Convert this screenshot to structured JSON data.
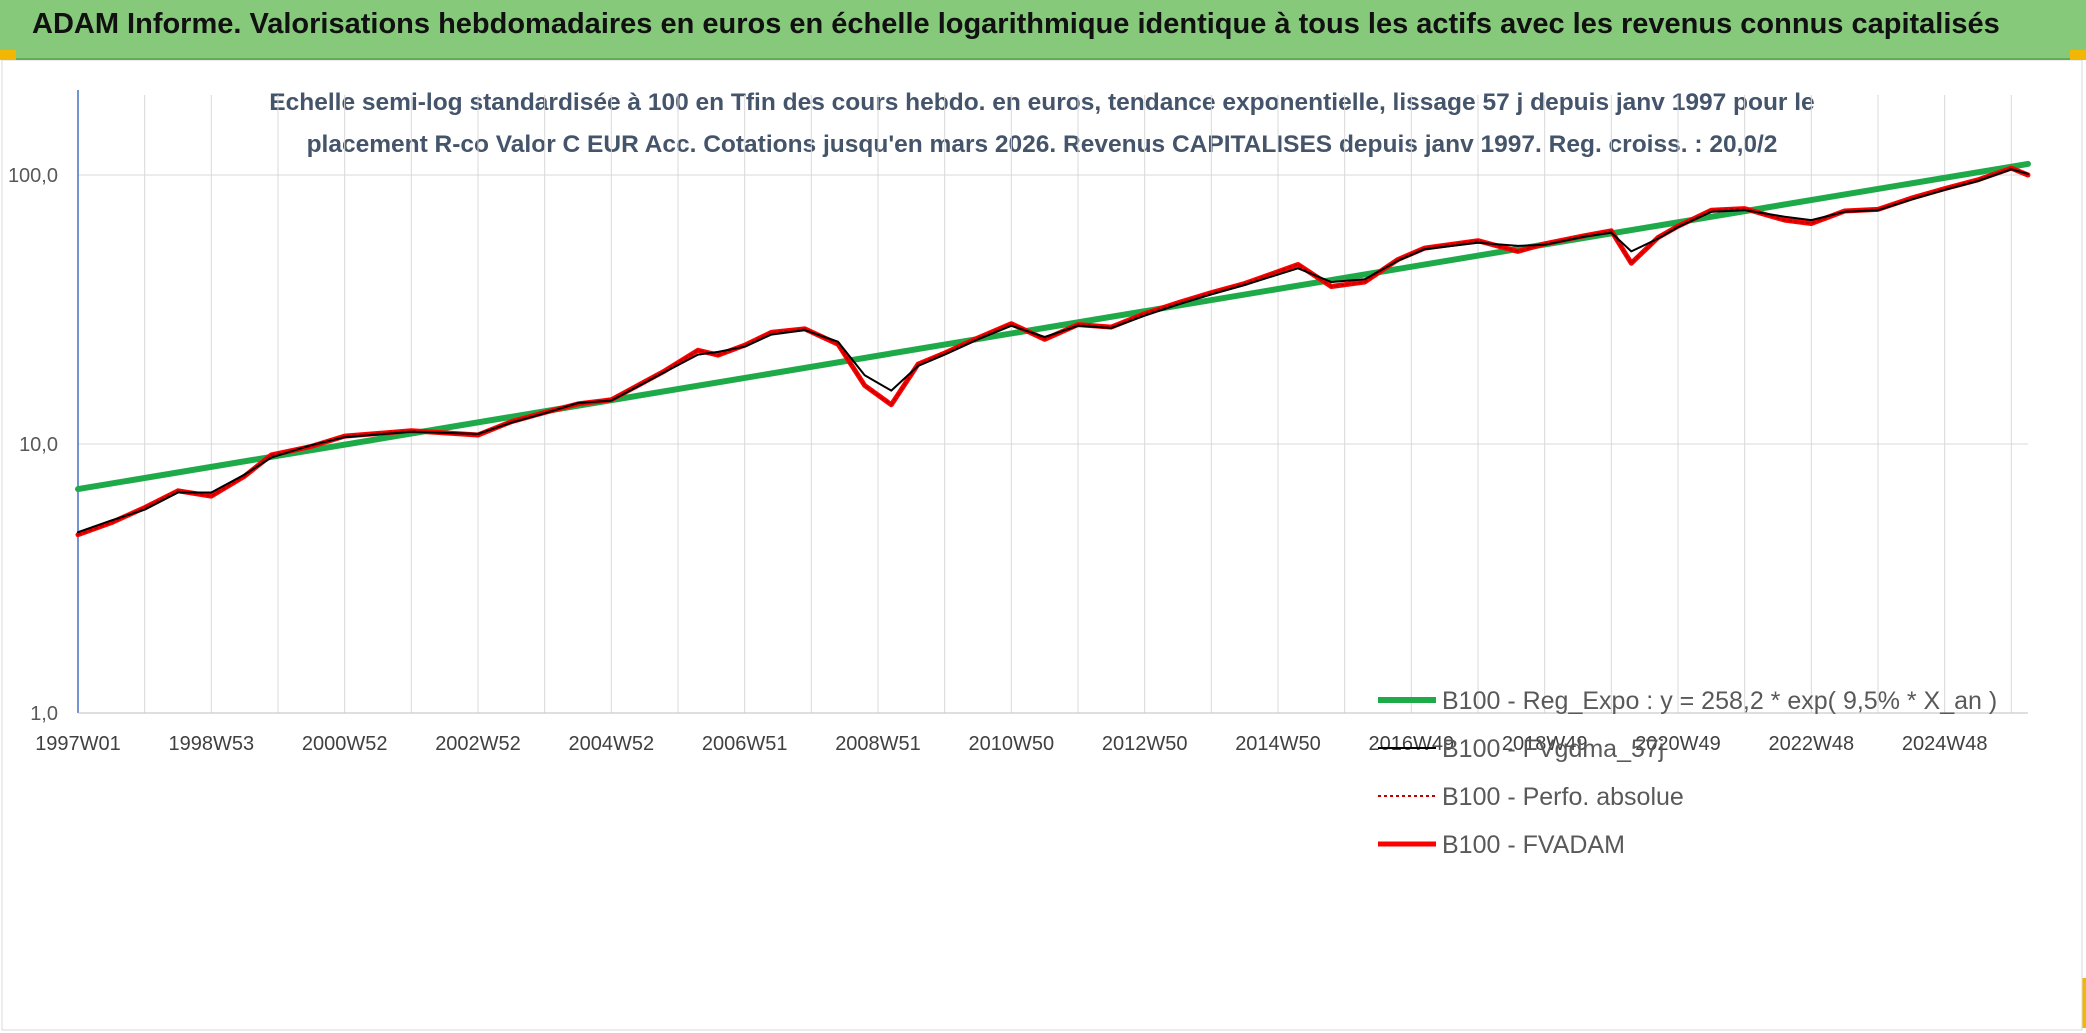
{
  "header": {
    "title": "ADAM Informe. Valorisations hebdomadaires en euros en échelle logarithmique identique à tous les actifs avec les revenus connus capitalisés"
  },
  "colors": {
    "header_bg": "#86c97a",
    "reg_expo": "#1faa4a",
    "fvgdma": "#000000",
    "perfo": "#c00000",
    "fvadam": "#ff0000",
    "gridline": "#d9d9d9",
    "yaxis": "#4472c4"
  },
  "chart_data": {
    "type": "line",
    "title_lines": [
      "Echelle semi-log standardisée à 100 en Tfin des cours hebdo. en euros, tendance exponentielle, lissage 57 j depuis janv 1997 pour le",
      "placement R-co Valor C EUR Acc. Cotations jusqu'en mars 2026. Revenus CAPITALISES depuis janv 1997. Reg. croiss. : 20,0/2"
    ],
    "y_scale": "log",
    "ylim": [
      1,
      200
    ],
    "xlim": [
      1997.0,
      2026.25
    ],
    "y_ticks": [
      {
        "value": 1,
        "label": "1,0"
      },
      {
        "value": 10,
        "label": "10,0"
      },
      {
        "value": 100,
        "label": "100,0"
      }
    ],
    "x_ticks": [
      {
        "value": 1997.0,
        "label": "1997W01"
      },
      {
        "value": 1999.0,
        "label": "1998W53"
      },
      {
        "value": 2001.0,
        "label": "2000W52"
      },
      {
        "value": 2003.0,
        "label": "2002W52"
      },
      {
        "value": 2005.0,
        "label": "2004W52"
      },
      {
        "value": 2007.0,
        "label": "2006W51"
      },
      {
        "value": 2009.0,
        "label": "2008W51"
      },
      {
        "value": 2011.0,
        "label": "2010W50"
      },
      {
        "value": 2013.0,
        "label": "2012W50"
      },
      {
        "value": 2015.0,
        "label": "2014W50"
      },
      {
        "value": 2017.0,
        "label": "2016W49"
      },
      {
        "value": 2019.0,
        "label": "2018W49"
      },
      {
        "value": 2021.0,
        "label": "2020W49"
      },
      {
        "value": 2023.0,
        "label": "2022W48"
      },
      {
        "value": 2025.0,
        "label": "2024W48"
      }
    ],
    "grid": true,
    "legend_position": "right",
    "series": [
      {
        "name": "B100 - Reg_Expo : y = 258,2 * exp( 9,5% *  X_an )",
        "key": "reg_expo",
        "style": "solid",
        "points": [
          [
            1997.0,
            6.8
          ],
          [
            2026.25,
            110.0
          ]
        ]
      },
      {
        "name": "B100 - FVgdma_57j",
        "key": "fvgdma",
        "style": "solid",
        "points": [
          [
            1997.0,
            4.7
          ],
          [
            1997.5,
            5.2
          ],
          [
            1998.0,
            5.7
          ],
          [
            1998.5,
            6.6
          ],
          [
            1999.0,
            6.6
          ],
          [
            1999.5,
            7.7
          ],
          [
            1999.9,
            8.9
          ],
          [
            2000.5,
            9.9
          ],
          [
            2001.0,
            10.6
          ],
          [
            2002.0,
            11.1
          ],
          [
            2003.0,
            10.9
          ],
          [
            2003.5,
            12.0
          ],
          [
            2004.0,
            13.0
          ],
          [
            2004.5,
            14.2
          ],
          [
            2005.0,
            14.5
          ],
          [
            2005.8,
            18.5
          ],
          [
            2006.3,
            21.5
          ],
          [
            2006.6,
            22.0
          ],
          [
            2007.0,
            23.0
          ],
          [
            2007.4,
            25.5
          ],
          [
            2007.9,
            26.5
          ],
          [
            2008.4,
            24.0
          ],
          [
            2008.8,
            18.0
          ],
          [
            2009.2,
            15.8
          ],
          [
            2009.6,
            19.5
          ],
          [
            2010.0,
            21.5
          ],
          [
            2010.5,
            24.5
          ],
          [
            2011.0,
            27.5
          ],
          [
            2011.5,
            25.0
          ],
          [
            2012.0,
            27.5
          ],
          [
            2012.5,
            27.0
          ],
          [
            2013.0,
            30.0
          ],
          [
            2013.5,
            33.0
          ],
          [
            2014.0,
            36.0
          ],
          [
            2014.5,
            39.0
          ],
          [
            2015.3,
            45.0
          ],
          [
            2015.8,
            40.0
          ],
          [
            2016.3,
            41.0
          ],
          [
            2016.8,
            48.0
          ],
          [
            2017.2,
            53.0
          ],
          [
            2018.0,
            56.0
          ],
          [
            2018.6,
            54.5
          ],
          [
            2019.0,
            55.0
          ],
          [
            2019.6,
            59.0
          ],
          [
            2020.0,
            61.0
          ],
          [
            2020.3,
            52.0
          ],
          [
            2020.7,
            58.0
          ],
          [
            2021.0,
            64.0
          ],
          [
            2021.5,
            73.0
          ],
          [
            2022.0,
            74.0
          ],
          [
            2022.6,
            70.0
          ],
          [
            2023.0,
            68.0
          ],
          [
            2023.5,
            73.0
          ],
          [
            2024.0,
            74.0
          ],
          [
            2024.5,
            81.0
          ],
          [
            2025.0,
            88.0
          ],
          [
            2025.5,
            95.0
          ],
          [
            2026.0,
            105.0
          ],
          [
            2026.25,
            101.0
          ]
        ]
      },
      {
        "name": "B100 - Perfo. absolue",
        "key": "perfo",
        "style": "dotted",
        "points": [
          [
            1997.0,
            4.6
          ],
          [
            1997.5,
            5.1
          ],
          [
            1998.0,
            5.8
          ],
          [
            1998.5,
            6.7
          ],
          [
            1999.0,
            6.4
          ],
          [
            1999.5,
            7.6
          ],
          [
            1999.9,
            9.1
          ],
          [
            2000.5,
            9.8
          ],
          [
            2001.0,
            10.7
          ],
          [
            2002.0,
            11.2
          ],
          [
            2003.0,
            10.8
          ],
          [
            2003.5,
            12.1
          ],
          [
            2004.0,
            13.1
          ],
          [
            2004.5,
            14.1
          ],
          [
            2005.0,
            14.6
          ],
          [
            2005.8,
            18.7
          ],
          [
            2006.3,
            22.3
          ],
          [
            2006.6,
            21.4
          ],
          [
            2007.0,
            23.3
          ],
          [
            2007.4,
            26.0
          ],
          [
            2007.9,
            26.8
          ],
          [
            2008.4,
            23.5
          ],
          [
            2008.8,
            16.5
          ],
          [
            2009.2,
            14.0
          ],
          [
            2009.6,
            19.8
          ],
          [
            2010.0,
            21.8
          ],
          [
            2010.5,
            24.8
          ],
          [
            2011.0,
            28.0
          ],
          [
            2011.5,
            24.5
          ],
          [
            2012.0,
            27.8
          ],
          [
            2012.5,
            27.2
          ],
          [
            2013.0,
            30.5
          ],
          [
            2013.5,
            33.5
          ],
          [
            2014.0,
            36.5
          ],
          [
            2014.5,
            39.5
          ],
          [
            2015.3,
            46.5
          ],
          [
            2015.8,
            38.5
          ],
          [
            2016.3,
            40.0
          ],
          [
            2016.8,
            48.5
          ],
          [
            2017.2,
            53.5
          ],
          [
            2018.0,
            57.0
          ],
          [
            2018.6,
            52.0
          ],
          [
            2019.0,
            55.5
          ],
          [
            2019.6,
            59.5
          ],
          [
            2020.0,
            62.0
          ],
          [
            2020.3,
            47.0
          ],
          [
            2020.7,
            58.5
          ],
          [
            2021.0,
            64.5
          ],
          [
            2021.5,
            74.0
          ],
          [
            2022.0,
            75.0
          ],
          [
            2022.6,
            68.0
          ],
          [
            2023.0,
            66.0
          ],
          [
            2023.5,
            73.5
          ],
          [
            2024.0,
            74.5
          ],
          [
            2024.5,
            82.0
          ],
          [
            2025.0,
            89.0
          ],
          [
            2025.5,
            96.0
          ],
          [
            2026.0,
            106.0
          ],
          [
            2026.25,
            100.0
          ]
        ]
      },
      {
        "name": "B100 - FVADAM",
        "key": "fvadam",
        "style": "solid",
        "points": [
          [
            1997.0,
            4.6
          ],
          [
            1997.5,
            5.1
          ],
          [
            1998.0,
            5.8
          ],
          [
            1998.5,
            6.7
          ],
          [
            1999.0,
            6.4
          ],
          [
            1999.5,
            7.6
          ],
          [
            1999.9,
            9.1
          ],
          [
            2000.5,
            9.8
          ],
          [
            2001.0,
            10.7
          ],
          [
            2002.0,
            11.2
          ],
          [
            2003.0,
            10.8
          ],
          [
            2003.5,
            12.1
          ],
          [
            2004.0,
            13.1
          ],
          [
            2004.5,
            14.1
          ],
          [
            2005.0,
            14.6
          ],
          [
            2005.8,
            18.7
          ],
          [
            2006.3,
            22.3
          ],
          [
            2006.6,
            21.4
          ],
          [
            2007.0,
            23.3
          ],
          [
            2007.4,
            26.0
          ],
          [
            2007.9,
            26.8
          ],
          [
            2008.4,
            23.5
          ],
          [
            2008.8,
            16.5
          ],
          [
            2009.2,
            14.0
          ],
          [
            2009.6,
            19.8
          ],
          [
            2010.0,
            21.8
          ],
          [
            2010.5,
            24.8
          ],
          [
            2011.0,
            28.0
          ],
          [
            2011.5,
            24.5
          ],
          [
            2012.0,
            27.8
          ],
          [
            2012.5,
            27.2
          ],
          [
            2013.0,
            30.5
          ],
          [
            2013.5,
            33.5
          ],
          [
            2014.0,
            36.5
          ],
          [
            2014.5,
            39.5
          ],
          [
            2015.3,
            46.5
          ],
          [
            2015.8,
            38.5
          ],
          [
            2016.3,
            40.0
          ],
          [
            2016.8,
            48.5
          ],
          [
            2017.2,
            53.5
          ],
          [
            2018.0,
            57.0
          ],
          [
            2018.6,
            52.0
          ],
          [
            2019.0,
            55.5
          ],
          [
            2019.6,
            59.5
          ],
          [
            2020.0,
            62.0
          ],
          [
            2020.3,
            47.0
          ],
          [
            2020.7,
            58.5
          ],
          [
            2021.0,
            64.5
          ],
          [
            2021.5,
            74.0
          ],
          [
            2022.0,
            75.0
          ],
          [
            2022.6,
            68.0
          ],
          [
            2023.0,
            66.0
          ],
          [
            2023.5,
            73.5
          ],
          [
            2024.0,
            74.5
          ],
          [
            2024.5,
            82.0
          ],
          [
            2025.0,
            89.0
          ],
          [
            2025.5,
            96.0
          ],
          [
            2026.0,
            106.0
          ],
          [
            2026.25,
            100.0
          ]
        ]
      }
    ]
  }
}
